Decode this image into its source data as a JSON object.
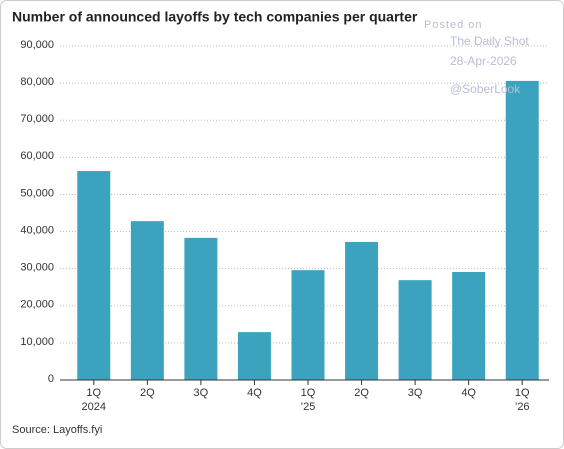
{
  "chart_data": {
    "type": "bar",
    "title": "Number of announced layoffs by tech companies per quarter",
    "categories": [
      "1Q",
      "2Q",
      "3Q",
      "4Q",
      "1Q",
      "2Q",
      "3Q",
      "4Q",
      "1Q"
    ],
    "category_years": [
      "2024",
      null,
      null,
      null,
      "’25",
      null,
      null,
      null,
      "’26"
    ],
    "values": [
      56300,
      42800,
      38300,
      12900,
      29600,
      37200,
      26900,
      29100,
      80600
    ],
    "color": "#3ba3bd",
    "ylim": [
      0,
      90000
    ],
    "yticks": [
      0,
      {
        "value": 10000,
        "label": "10,000"
      },
      {
        "value": 20000,
        "label": "20,000"
      },
      {
        "value": 30000,
        "label": "30,000"
      },
      {
        "value": 40000,
        "label": "40,000"
      },
      {
        "value": 50000,
        "label": "50,000"
      },
      {
        "value": 60000,
        "label": "60,000"
      },
      {
        "value": 70000,
        "label": "70,000"
      },
      {
        "value": 80000,
        "label": "80,000"
      },
      {
        "value": 90000,
        "label": "90,000"
      }
    ],
    "grid": true,
    "source": "Source: Layoffs.fyi",
    "watermark": [
      "Posted on",
      "The Daily Shot",
      "28-Apr-2026",
      "@SoberLook"
    ]
  }
}
